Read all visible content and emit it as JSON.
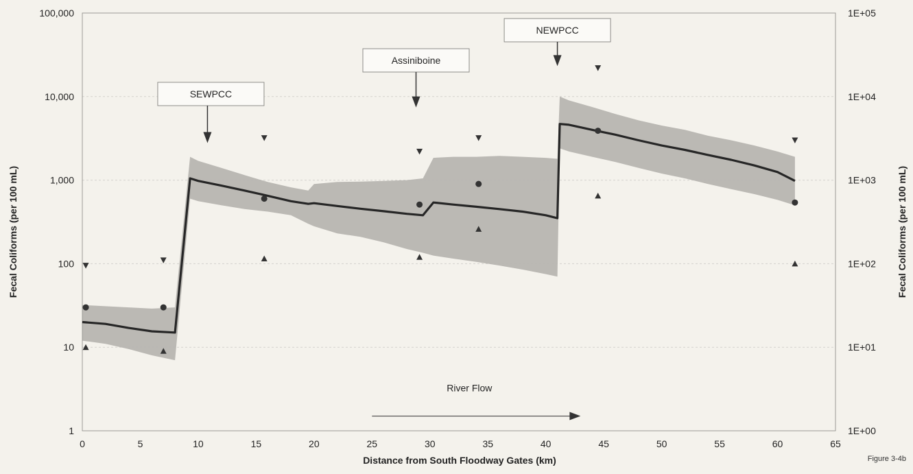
{
  "chart_data": {
    "type": "line",
    "xlabel": "Distance from South Floodway Gates (km)",
    "ylabel": "Fecal Coliforms (per 100 mL)",
    "ylabel_right": "Fecal Coliforms (per 100 mL)",
    "x_range": [
      0,
      65
    ],
    "y_range": [
      1,
      100000
    ],
    "y_scale": "log",
    "x_ticks": [
      "0",
      "5",
      "10",
      "15",
      "20",
      "25",
      "30",
      "35",
      "40",
      "45",
      "50",
      "55",
      "60",
      "65"
    ],
    "y_ticks_left": [
      "1",
      "10",
      "100",
      "1,000",
      "10,000",
      "100,000"
    ],
    "y_ticks_right": [
      "1E+00",
      "1E+01",
      "1E+02",
      "1E+03",
      "1E+04",
      "1E+05"
    ],
    "grid": true,
    "series": [
      {
        "type": "line",
        "x": [
          0,
          2,
          4,
          6,
          8,
          9.3,
          10,
          12,
          14,
          16,
          18,
          19.5,
          20,
          22,
          24,
          26,
          28,
          29.4,
          30.3,
          32,
          34,
          36,
          38,
          40,
          41,
          41.2,
          42,
          44,
          46,
          48,
          50,
          52,
          54,
          56,
          58,
          60,
          61.5
        ],
        "y": [
          20,
          19,
          17,
          15.5,
          15,
          1050,
          980,
          860,
          750,
          650,
          560,
          520,
          530,
          490,
          455,
          425,
          395,
          380,
          540,
          510,
          480,
          450,
          420,
          380,
          350,
          4700,
          4600,
          4000,
          3500,
          3000,
          2600,
          2300,
          2000,
          1750,
          1500,
          1250,
          980
        ]
      },
      {
        "type": "area",
        "x": [
          0,
          2,
          4,
          6,
          8,
          9.3,
          10,
          12,
          14,
          16,
          18,
          19.5,
          20,
          22,
          24,
          26,
          28,
          29.4,
          30.3,
          32,
          34,
          36,
          38,
          40,
          41,
          41.2,
          42,
          44,
          46,
          48,
          50,
          52,
          54,
          56,
          58,
          60,
          61.5
        ],
        "lower": [
          12,
          11,
          9.5,
          8,
          7,
          600,
          560,
          500,
          450,
          420,
          380,
          300,
          280,
          230,
          210,
          180,
          150,
          135,
          125,
          115,
          105,
          95,
          85,
          75,
          70,
          2400,
          2200,
          1900,
          1650,
          1400,
          1200,
          1050,
          900,
          780,
          680,
          580,
          500
        ],
        "upper": [
          32,
          31,
          30,
          29,
          30,
          1900,
          1700,
          1400,
          1150,
          950,
          820,
          750,
          900,
          950,
          960,
          980,
          1000,
          1050,
          1850,
          1900,
          1900,
          1950,
          1900,
          1850,
          1800,
          10000,
          9000,
          7500,
          6200,
          5200,
          4500,
          4000,
          3400,
          3000,
          2600,
          2200,
          1900
        ]
      },
      {
        "type": "scatter",
        "marker": "circle",
        "x": [
          0.3,
          7,
          15.7,
          29.1,
          34.2,
          44.5,
          61.5
        ],
        "y": [
          30,
          30,
          600,
          510,
          900,
          3900,
          540
        ]
      },
      {
        "type": "scatter",
        "marker": "triangle-down",
        "x": [
          0.3,
          7,
          15.7,
          29.1,
          34.2,
          44.5,
          61.5
        ],
        "y": [
          95,
          110,
          3200,
          2200,
          3200,
          22000,
          3000
        ]
      },
      {
        "type": "scatter",
        "marker": "triangle-up",
        "x": [
          0.3,
          7,
          15.7,
          29.1,
          34.2,
          44.5,
          61.5
        ],
        "y": [
          10,
          9,
          115,
          120,
          260,
          650,
          100
        ]
      }
    ],
    "annotations": [
      {
        "text": "SEWPCC",
        "x": 10.8,
        "y": 3000
      },
      {
        "text": "Assiniboine",
        "x": 28.8,
        "y": 8000
      },
      {
        "text": "NEWPCC",
        "x": 41,
        "y": 25000
      }
    ],
    "flow_label": "River Flow",
    "flow_arrow": {
      "x": [
        25,
        43
      ],
      "y": 1.5
    }
  },
  "figure_label": "Figure 3-4b",
  "colors": {
    "background": "#f4f2ec",
    "band": "#b7b5b1",
    "line": "#262626",
    "marker": "#333333",
    "grid": "#d4d2cd",
    "frame": "#9b9a96"
  }
}
